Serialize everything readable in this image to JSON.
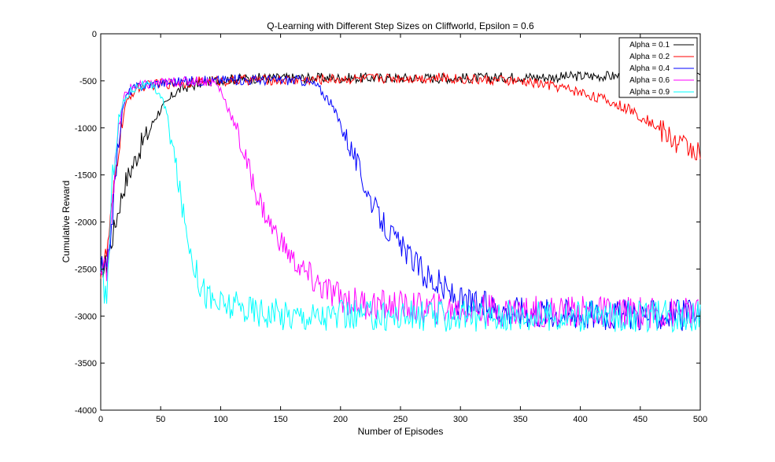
{
  "chart_data": {
    "type": "line",
    "title": "Q-Learning with Different Step Sizes on Cliffworld, Epsilon = 0.6",
    "xlabel": "Number of Episodes",
    "ylabel": "Cumulative Reward",
    "xlim": [
      0,
      500
    ],
    "ylim": [
      -4000,
      0
    ],
    "xticks": [
      0,
      50,
      100,
      150,
      200,
      250,
      300,
      350,
      400,
      450,
      500
    ],
    "yticks": [
      0,
      -500,
      -1000,
      -1500,
      -2000,
      -2500,
      -3000,
      -3500,
      -4000
    ],
    "grid": false,
    "legend_position": "top-right",
    "x": [
      0,
      5,
      10,
      15,
      20,
      25,
      30,
      35,
      40,
      45,
      50,
      55,
      60,
      65,
      70,
      75,
      80,
      85,
      90,
      95,
      100,
      110,
      120,
      130,
      140,
      150,
      160,
      170,
      180,
      190,
      200,
      210,
      220,
      230,
      240,
      250,
      260,
      270,
      280,
      290,
      300,
      320,
      340,
      360,
      380,
      400,
      420,
      440,
      460,
      480,
      500
    ],
    "series": [
      {
        "name": "Alpha = 0.1",
        "color": "#000000",
        "values": [
          -2500,
          -2450,
          -2150,
          -1850,
          -1600,
          -1450,
          -1300,
          -1150,
          -1050,
          -900,
          -800,
          -750,
          -650,
          -600,
          -570,
          -560,
          -540,
          -520,
          -510,
          -500,
          -490,
          -480,
          -480,
          -470,
          -470,
          -470,
          -470,
          -470,
          -470,
          -470,
          -470,
          -470,
          -470,
          -470,
          -470,
          -470,
          -470,
          -470,
          -470,
          -470,
          -470,
          -470,
          -460,
          -460,
          -460,
          -450,
          -450,
          -450,
          -450,
          -450,
          -450
        ]
      },
      {
        "name": "Alpha = 0.2",
        "color": "#ff0000",
        "values": [
          -2500,
          -2350,
          -1800,
          -1200,
          -800,
          -650,
          -580,
          -560,
          -550,
          -540,
          -530,
          -530,
          -530,
          -520,
          -520,
          -510,
          -510,
          -510,
          -500,
          -500,
          -500,
          -500,
          -490,
          -490,
          -490,
          -490,
          -490,
          -490,
          -490,
          -480,
          -480,
          -480,
          -480,
          -470,
          -470,
          -470,
          -470,
          -470,
          -470,
          -470,
          -480,
          -490,
          -500,
          -520,
          -560,
          -620,
          -700,
          -800,
          -950,
          -1150,
          -1250
        ]
      },
      {
        "name": "Alpha = 0.4",
        "color": "#0000ff",
        "values": [
          -2500,
          -2550,
          -1900,
          -1100,
          -700,
          -600,
          -570,
          -550,
          -540,
          -530,
          -520,
          -520,
          -510,
          -510,
          -510,
          -500,
          -500,
          -500,
          -500,
          -500,
          -490,
          -490,
          -490,
          -490,
          -490,
          -490,
          -490,
          -500,
          -550,
          -700,
          -950,
          -1250,
          -1600,
          -1900,
          -2100,
          -2250,
          -2400,
          -2550,
          -2650,
          -2750,
          -2850,
          -2900,
          -2930,
          -2950,
          -2960,
          -2970,
          -2980,
          -2980,
          -2990,
          -2990,
          -3000
        ]
      },
      {
        "name": "Alpha = 0.6",
        "color": "#ff00ff",
        "values": [
          -2550,
          -2500,
          -1700,
          -1000,
          -650,
          -580,
          -560,
          -550,
          -540,
          -530,
          -520,
          -520,
          -510,
          -510,
          -510,
          -500,
          -500,
          -500,
          -510,
          -520,
          -600,
          -900,
          -1300,
          -1700,
          -2000,
          -2200,
          -2400,
          -2550,
          -2650,
          -2750,
          -2800,
          -2850,
          -2870,
          -2880,
          -2890,
          -2900,
          -2910,
          -2920,
          -2920,
          -2930,
          -2930,
          -2940,
          -2940,
          -2950,
          -2950,
          -2950,
          -2960,
          -2960,
          -2960,
          -2970,
          -2970
        ]
      },
      {
        "name": "Alpha = 0.9",
        "color": "#00ffff",
        "values": [
          -2600,
          -2800,
          -1500,
          -900,
          -700,
          -600,
          -560,
          -550,
          -560,
          -580,
          -650,
          -850,
          -1200,
          -1600,
          -2000,
          -2300,
          -2550,
          -2700,
          -2800,
          -2850,
          -2880,
          -2900,
          -2920,
          -2940,
          -2960,
          -2980,
          -2990,
          -2990,
          -3000,
          -3000,
          -3000,
          -3000,
          -3000,
          -3000,
          -3000,
          -3000,
          -3000,
          -3000,
          -3000,
          -3000,
          -3000,
          -3000,
          -3000,
          -3000,
          -3000,
          -3000,
          -3000,
          -3000,
          -3000,
          -3000,
          -3000
        ]
      }
    ]
  }
}
